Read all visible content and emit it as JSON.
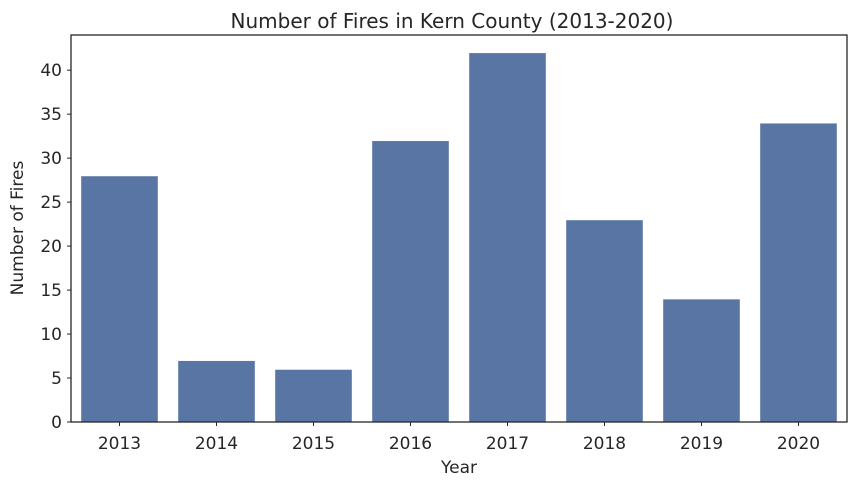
{
  "chart_data": {
    "type": "bar",
    "title": "Number of Fires in Kern County (2013-2020)",
    "xlabel": "Year",
    "ylabel": "Number of Fires",
    "categories": [
      "2013",
      "2014",
      "2015",
      "2016",
      "2017",
      "2018",
      "2019",
      "2020"
    ],
    "values": [
      28,
      7,
      6,
      32,
      42,
      23,
      14,
      34
    ],
    "ylim": [
      0,
      44
    ],
    "yticks": [
      0,
      5,
      10,
      15,
      20,
      25,
      30,
      35,
      40
    ],
    "grid": false,
    "legend": "none",
    "bar_color": "#5975a4",
    "axis_color": "#262626"
  }
}
